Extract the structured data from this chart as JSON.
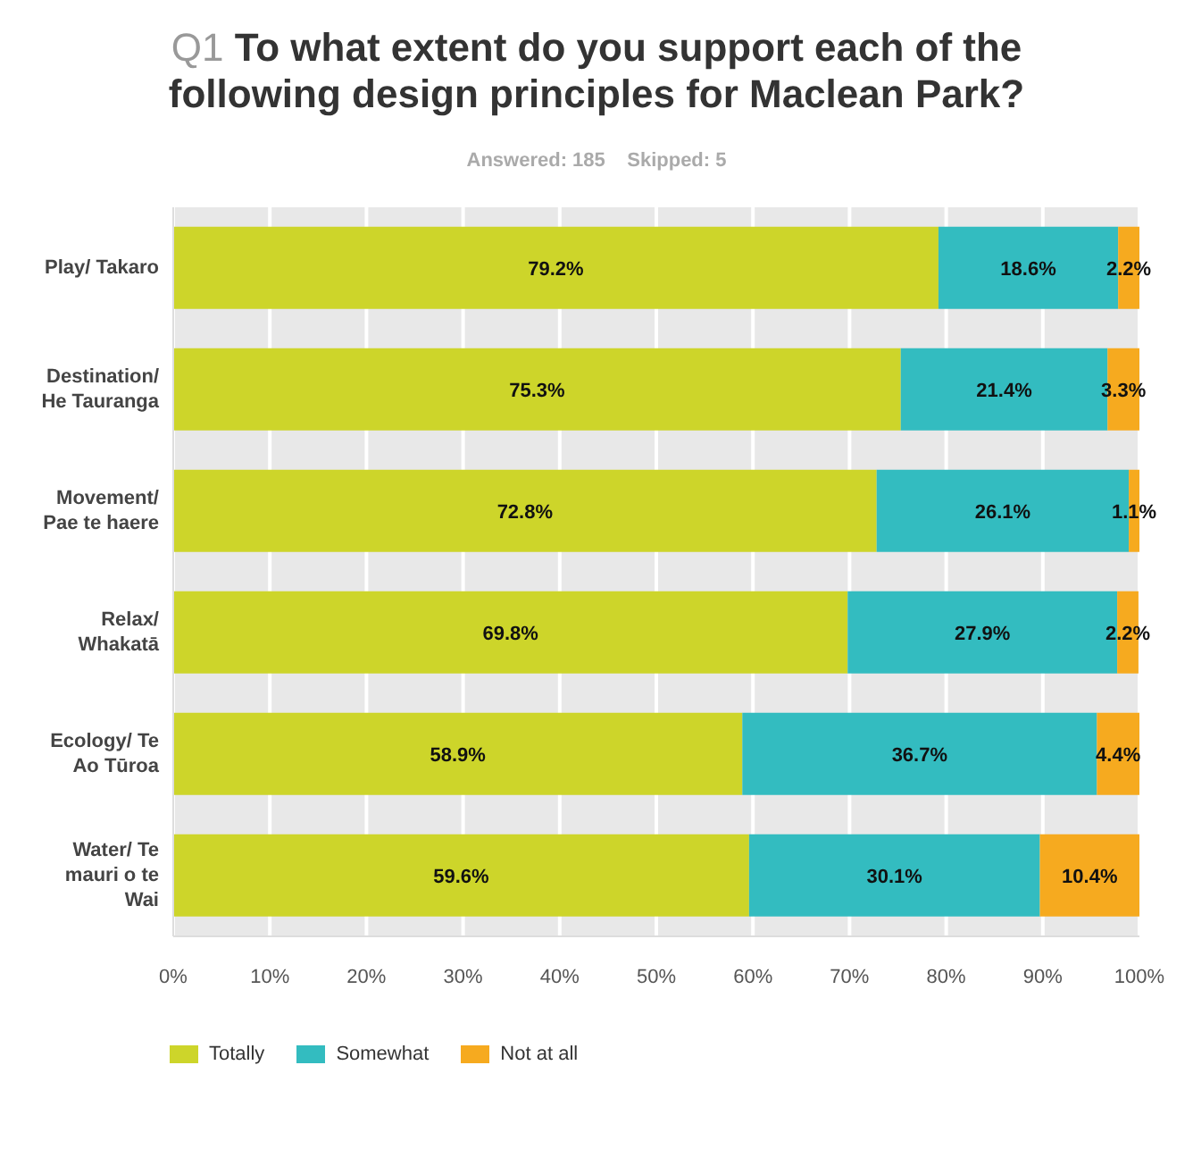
{
  "chart_data": {
    "type": "bar",
    "orientation": "horizontal",
    "stacked": true,
    "title": "Q1 To what extent do you support each of the following design principles for Maclean Park?",
    "subtitle": "Answered: 185    Skipped: 5",
    "categories": [
      "Play/ Takaro",
      "Destination/ He Tauranga",
      "Movement/ Pae te haere",
      "Relax/ Whakatā",
      "Ecology/ Te Ao Tūroa",
      "Water/ Te mauri o te Wai"
    ],
    "series": [
      {
        "name": "Totally",
        "color": "#cdd52a",
        "values": [
          79.2,
          75.3,
          72.8,
          69.8,
          58.9,
          59.6
        ],
        "value_labels": [
          "79.2%",
          "75.3%",
          "72.8%",
          "69.8%",
          "58.9%",
          "59.6%"
        ]
      },
      {
        "name": "Somewhat",
        "color": "#33bcc0",
        "values": [
          18.6,
          21.4,
          26.1,
          27.9,
          36.7,
          30.1
        ],
        "value_labels": [
          "18.6%",
          "21.4%",
          "26.1%",
          "27.9%",
          "36.7%",
          "30.1%"
        ]
      },
      {
        "name": "Not at all",
        "color": "#f6aa1f",
        "values": [
          2.2,
          3.3,
          1.1,
          2.2,
          4.4,
          10.4
        ],
        "value_labels": [
          "2.2%",
          "3.3%",
          "1.1%",
          "2.2%",
          "4.4%",
          "10.4%"
        ]
      }
    ],
    "xlim": [
      0,
      100
    ],
    "xticks": [
      {
        "value": 0,
        "label": "0%"
      },
      {
        "value": 10,
        "label": "10%"
      },
      {
        "value": 20,
        "label": "20%"
      },
      {
        "value": 30,
        "label": "30%"
      },
      {
        "value": 40,
        "label": "40%"
      },
      {
        "value": 50,
        "label": "50%"
      },
      {
        "value": 60,
        "label": "60%"
      },
      {
        "value": 70,
        "label": "70%"
      },
      {
        "value": 80,
        "label": "80%"
      },
      {
        "value": 90,
        "label": "90%"
      },
      {
        "value": 100,
        "label": "100%"
      }
    ],
    "grid": "x",
    "legend": "bottom left"
  }
}
